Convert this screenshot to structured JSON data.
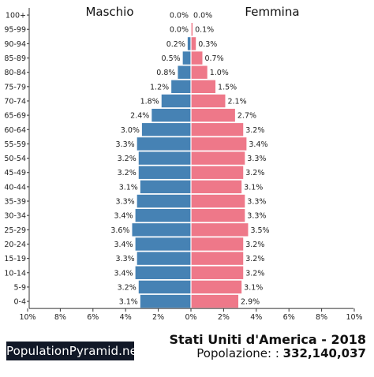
{
  "colors": {
    "male": "#4682b4",
    "female": "#ee7889",
    "brand_bg": "#111827"
  },
  "footer": {
    "brand": "PopulationPyramid.net",
    "country_year": "Stati Uniti d'America - 2018",
    "population_label": "Popolazione: :",
    "population_value": "332,140,037"
  },
  "chart_data": {
    "type": "bar",
    "orientation": "horizontal-pyramid",
    "title": "",
    "left_label": "Maschio",
    "right_label": "Femmina",
    "xlim": [
      0,
      10
    ],
    "x_ticks": [
      10,
      8,
      6,
      4,
      2,
      0
    ],
    "x_tick_labels": [
      "10%",
      "8%",
      "6%",
      "4%",
      "2%",
      "0%"
    ],
    "grid": false,
    "categories": [
      "100+",
      "95-99",
      "90-94",
      "85-89",
      "80-84",
      "75-79",
      "70-74",
      "65-69",
      "60-64",
      "55-59",
      "50-54",
      "45-49",
      "40-44",
      "35-39",
      "30-34",
      "25-29",
      "20-24",
      "15-19",
      "10-14",
      "5-9",
      "0-4"
    ],
    "series": [
      {
        "name": "Maschio",
        "values": [
          0.0,
          0.0,
          0.2,
          0.5,
          0.8,
          1.2,
          1.8,
          2.4,
          3.0,
          3.3,
          3.2,
          3.2,
          3.1,
          3.3,
          3.4,
          3.6,
          3.4,
          3.3,
          3.4,
          3.2,
          3.1
        ],
        "labels": [
          "0.0%",
          "0.0%",
          "0.2%",
          "0.5%",
          "0.8%",
          "1.2%",
          "1.8%",
          "2.4%",
          "3.0%",
          "3.3%",
          "3.2%",
          "3.2%",
          "3.1%",
          "3.3%",
          "3.4%",
          "3.6%",
          "3.4%",
          "3.3%",
          "3.4%",
          "3.2%",
          "3.1%"
        ]
      },
      {
        "name": "Femmina",
        "values": [
          0.0,
          0.1,
          0.3,
          0.7,
          1.0,
          1.5,
          2.1,
          2.7,
          3.2,
          3.4,
          3.3,
          3.2,
          3.1,
          3.3,
          3.3,
          3.5,
          3.2,
          3.2,
          3.2,
          3.1,
          2.9
        ],
        "labels": [
          "0.0%",
          "0.1%",
          "0.3%",
          "0.7%",
          "1.0%",
          "1.5%",
          "2.1%",
          "2.7%",
          "3.2%",
          "3.4%",
          "3.3%",
          "3.2%",
          "3.1%",
          "3.3%",
          "3.3%",
          "3.5%",
          "3.2%",
          "3.2%",
          "3.2%",
          "3.1%",
          "2.9%"
        ]
      }
    ]
  }
}
